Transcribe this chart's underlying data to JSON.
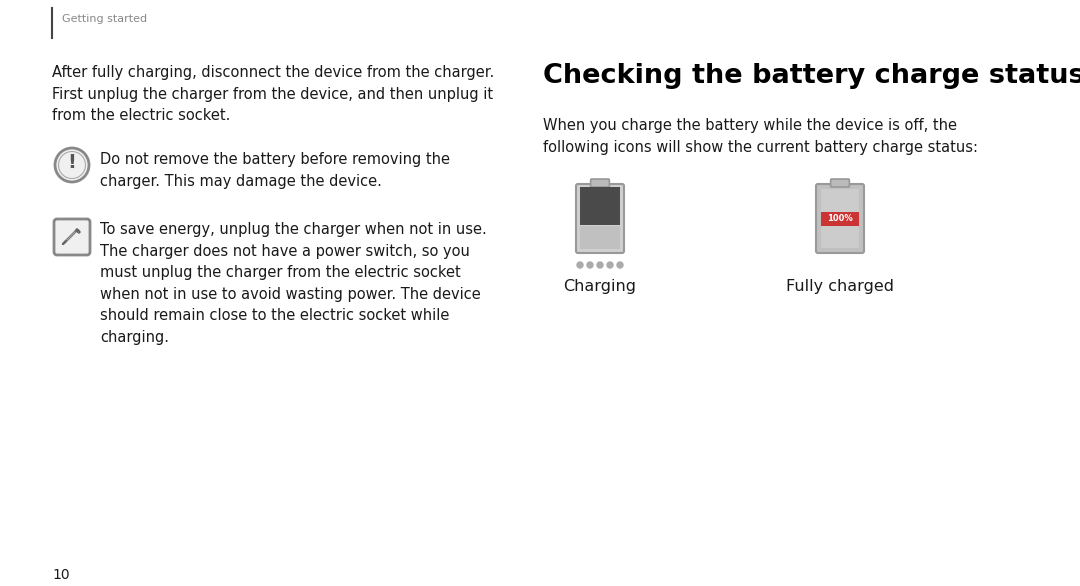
{
  "bg_color": "#ffffff",
  "page_number": "10",
  "header_text": "Getting started",
  "left_intro": "After fully charging, disconnect the device from the charger.\nFirst unplug the charger from the device, and then unplug it\nfrom the electric socket.",
  "note1_text": "Do not remove the battery before removing the\ncharger. This may damage the device.",
  "note2_text": "To save energy, unplug the charger when not in use.\nThe charger does not have a power switch, so you\nmust unplug the charger from the electric socket\nwhen not in use to avoid wasting power. The device\nshould remain close to the electric socket while\ncharging.",
  "section_title": "Checking the battery charge status",
  "body_text": "When you charge the battery while the device is off, the\nfollowing icons will show the current battery charge status:",
  "label_charging": "Charging",
  "label_fully_charged": "Fully charged",
  "font_color": "#1a1a1a",
  "header_color": "#888888",
  "line_color": "#555555",
  "icon_color": "#888888",
  "icon_fill": "#f0f0f0"
}
